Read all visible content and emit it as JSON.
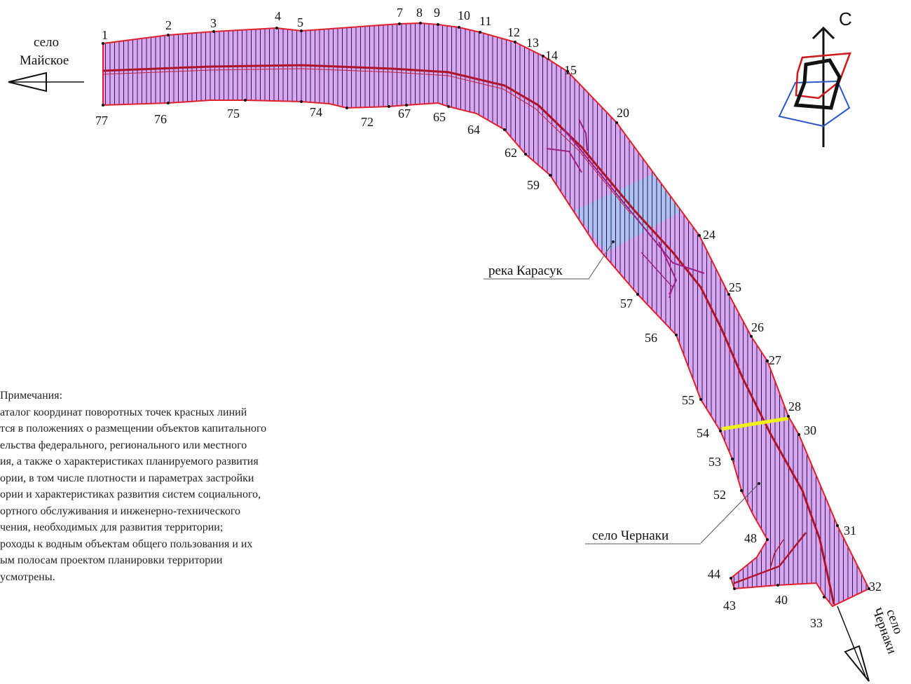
{
  "places": {
    "mayskoe_1": "село",
    "mayskoe_2": "Майское",
    "chernaki_side_1": "село",
    "chernaki_side_2": "Чернаки",
    "river": "река Карасук",
    "chernaki_village": "село Чернаки",
    "north": "С"
  },
  "points": {
    "p1": "1",
    "p2": "2",
    "p3": "3",
    "p4": "4",
    "p5": "5",
    "p7": "7",
    "p8": "8",
    "p9": "9",
    "p10": "10",
    "p11": "11",
    "p12": "12",
    "p13": "13",
    "p14": "14",
    "p15": "15",
    "p20": "20",
    "p24": "24",
    "p25": "25",
    "p26": "26",
    "p27": "27",
    "p28": "28",
    "p30": "30",
    "p31": "31",
    "p32": "32",
    "p33": "33",
    "p40": "40",
    "p43": "43",
    "p44": "44",
    "p48": "48",
    "p52": "52",
    "p53": "53",
    "p54": "54",
    "p55": "55",
    "p56": "56",
    "p57": "57",
    "p59": "59",
    "p62": "62",
    "p64": "64",
    "p65": "65",
    "p67": "67",
    "p72": "72",
    "p74": "74",
    "p75": "75",
    "p76": "76",
    "p77": "77"
  },
  "notes": [
    "Примечания:",
    "аталог координат поворотных точек красных линий",
    "тся в положениях о размещении объектов капитального",
    "ельства федерального, регионального или местного",
    "ия, а также о характеристиках планируемого развития",
    "ории, в том числе плотности и параметрах застройки",
    "ории и характеристиках развития систем социального,",
    "ортного обслуживания и инженерно-технического",
    "чения, необходимых для развития территории;",
    "роходы к водным объектам общего пользования и их",
    "ым полосам проектом планировки территории",
    "усмотрены."
  ],
  "colors": {
    "fill": "#d9a6f0",
    "boundary": "#e0202a",
    "road": "#b01428",
    "hatch": "#2a1a5a",
    "river": "#a9c6f2",
    "yellow": "#f2ee1a"
  }
}
